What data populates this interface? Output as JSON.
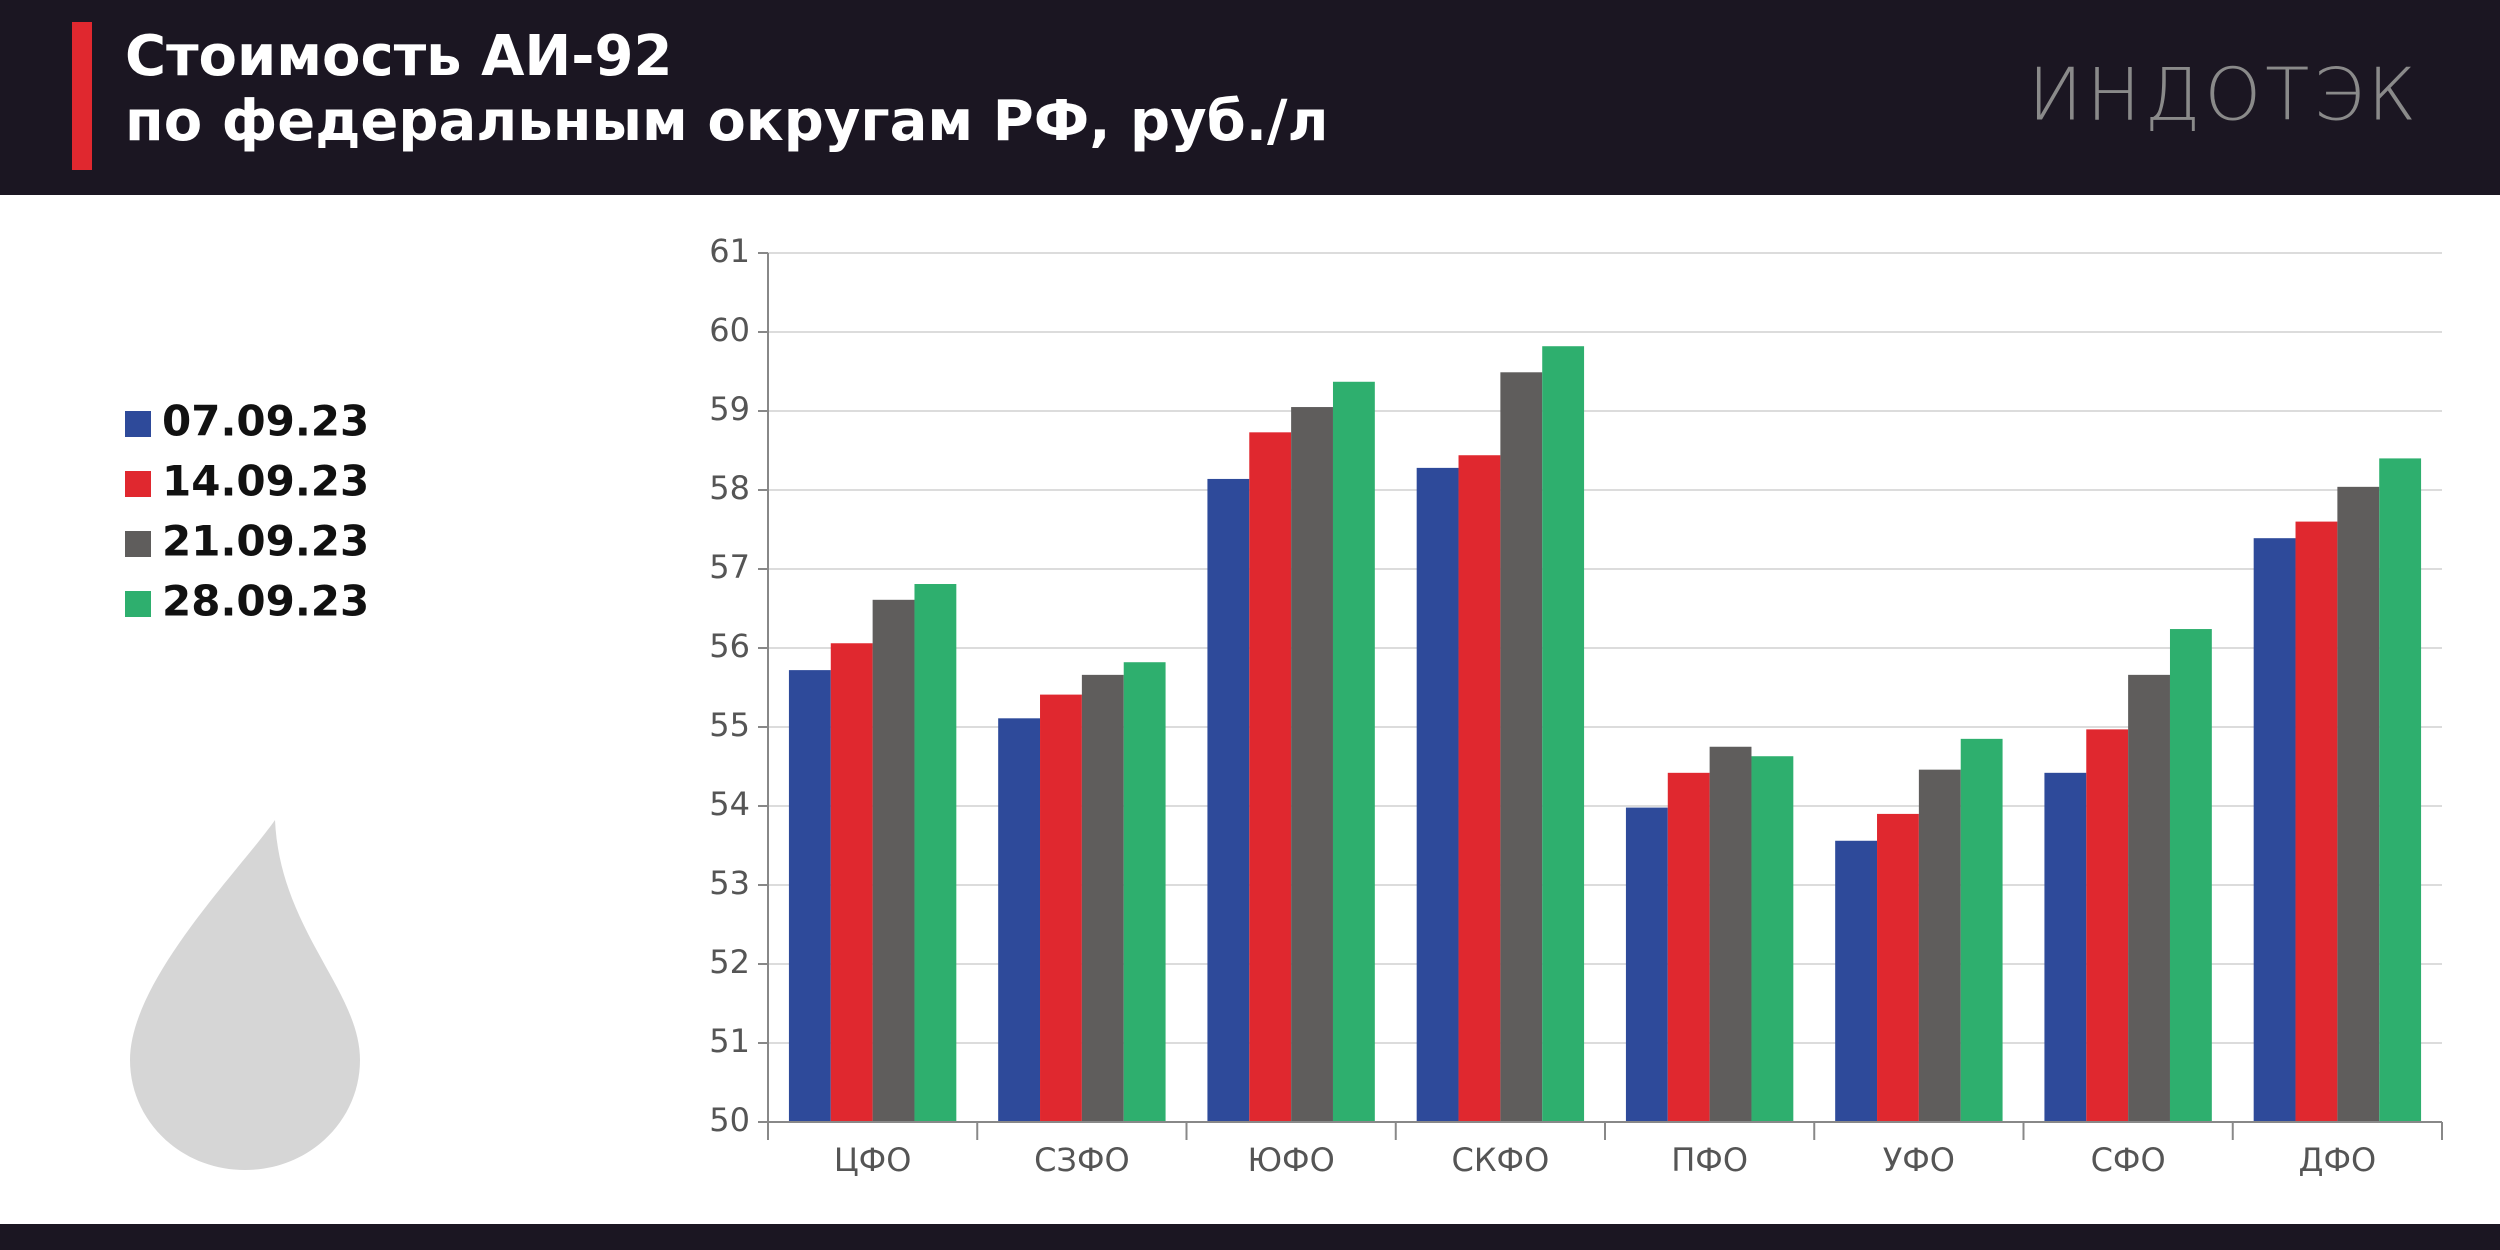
{
  "chart_data": {
    "type": "bar",
    "title_lines": [
      "Стоимость АИ-92",
      "по федеральным округам РФ, руб./л"
    ],
    "logo": "ИНДОТЭК",
    "categories": [
      "ЦФО",
      "СЗФО",
      "ЮФО",
      "СКФО",
      "ПФО",
      "УФО",
      "СФО",
      "ДФО"
    ],
    "series": [
      {
        "name": "07.09.23",
        "color": "#2e4a9a",
        "values": [
          55.72,
          55.11,
          58.14,
          58.28,
          53.98,
          53.56,
          54.42,
          57.39
        ]
      },
      {
        "name": "14.09.23",
        "color": "#e0282f",
        "values": [
          56.06,
          55.41,
          58.73,
          58.44,
          54.42,
          53.9,
          54.97,
          57.6
        ]
      },
      {
        "name": "21.09.23",
        "color": "#5f5d5c",
        "values": [
          56.61,
          55.66,
          59.05,
          59.49,
          54.75,
          54.46,
          55.66,
          58.04
        ]
      },
      {
        "name": "28.09.23",
        "color": "#2eaf6e",
        "values": [
          56.81,
          55.82,
          59.37,
          59.82,
          54.63,
          54.85,
          56.24,
          58.4
        ]
      }
    ],
    "ylim": [
      50,
      61
    ],
    "yticks": [
      50,
      51,
      52,
      53,
      54,
      55,
      56,
      57,
      58,
      59,
      60,
      61
    ],
    "grid": true,
    "legend": "left"
  }
}
